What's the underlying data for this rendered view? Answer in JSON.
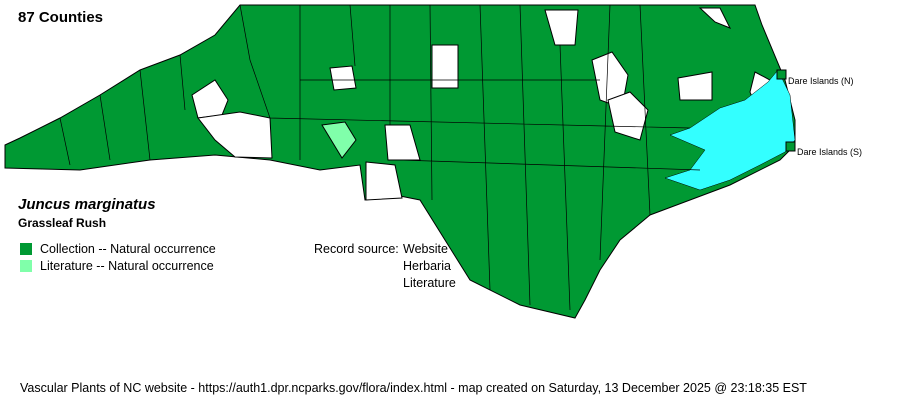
{
  "header": {
    "county_count": "87 Counties"
  },
  "species": {
    "scientific_name": "Juncus marginatus",
    "common_name": "Grassleaf Rush"
  },
  "legend": [
    {
      "label": "Collection -- Natural occurrence",
      "color": "#009933"
    },
    {
      "label": "Literature -- Natural occurrence",
      "color": "#80ffaa"
    }
  ],
  "record_source": {
    "label": "Record source:",
    "sources": [
      "Website",
      "Herbaria",
      "Literature"
    ]
  },
  "map": {
    "islands": [
      {
        "label": "Dare Islands (N)"
      },
      {
        "label": "Dare Islands (S)"
      }
    ],
    "colors": {
      "present": "#009933",
      "literature": "#80ffaa",
      "absent": "#ffffff",
      "water": "#33ffff",
      "border": "#000000"
    }
  },
  "footer": {
    "text": "Vascular Plants of NC website - https://auth1.dpr.ncparks.gov/flora/index.html - map created on Saturday, 13 December 2025 @ 23:18:35 EST"
  }
}
